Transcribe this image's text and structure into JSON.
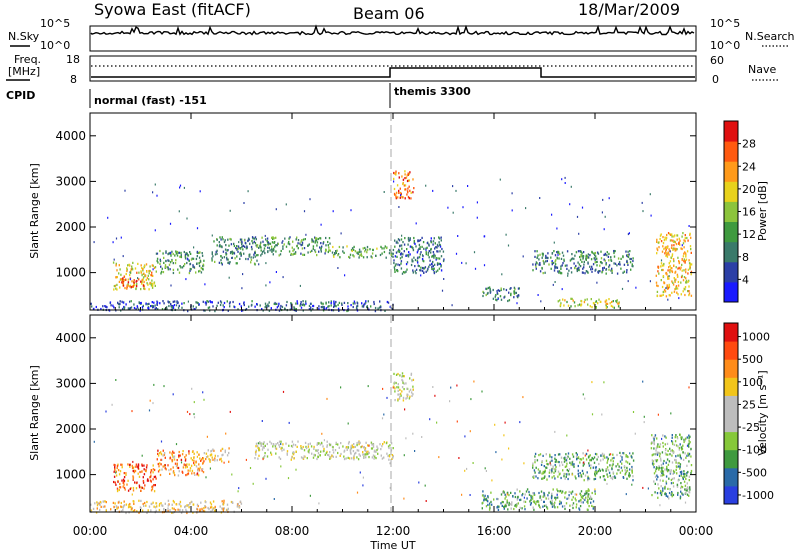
{
  "header": {
    "station": "Syowa East (fitACF)",
    "beam": "Beam 06",
    "date": "18/Mar/2009"
  },
  "top_panels": {
    "nsky_label": "N.Sky",
    "nsearch_label": "N.Search",
    "count_ticks": [
      "10^5",
      "10^0"
    ],
    "freq_label_1": "Freq.",
    "freq_label_2": "[MHz]",
    "freq_ticks": [
      "18",
      "8"
    ],
    "nave_ticks": [
      "60",
      "0"
    ],
    "nave_label": "Nave",
    "cpid_label": "CPID",
    "cpid_segments": [
      "normal (fast) -151",
      "themis 3300"
    ]
  },
  "colors": {
    "power_scale": [
      "#1a1aff",
      "#2c3fa6",
      "#3a7a6a",
      "#3f9a3f",
      "#8cc43c",
      "#e8d21c",
      "#ff9a1a",
      "#ff5a10",
      "#e01010"
    ],
    "velocity_scale": [
      "#2a3fe0",
      "#2a6aa8",
      "#3f9a3f",
      "#86c83a",
      "#bdbdbd",
      "#bdbdbd",
      "#f2c51a",
      "#ff8c1a",
      "#ff4a10",
      "#e01010"
    ],
    "ground_scatter": "#bdbdbd"
  },
  "chart_data": [
    {
      "type": "heatmap",
      "title": "Power",
      "xlabel": "",
      "ylabel": "Slant Range [km]",
      "xlim": [
        "00:00",
        "00:00"
      ],
      "ylim": [
        180,
        4500
      ],
      "y_ticks": [
        "1000",
        "2000",
        "3000",
        "4000"
      ],
      "colorbar": {
        "label": "Power [dB]",
        "ticks": [
          "4",
          "8",
          "12",
          "16",
          "20",
          "24",
          "28"
        ]
      },
      "regions": [
        {
          "t0": 0.9,
          "t1": 2.6,
          "r0": 650,
          "r1": 1250,
          "level": 0.62
        },
        {
          "t0": 1.2,
          "t1": 2.2,
          "r0": 700,
          "r1": 900,
          "level": 0.9
        },
        {
          "t0": 2.6,
          "t1": 4.5,
          "r0": 1000,
          "r1": 1500,
          "level": 0.35
        },
        {
          "t0": 4.8,
          "t1": 6.6,
          "r0": 1200,
          "r1": 1800,
          "level": 0.3
        },
        {
          "t0": 6.5,
          "t1": 9.5,
          "r0": 1400,
          "r1": 1800,
          "level": 0.35
        },
        {
          "t0": 9.5,
          "t1": 12.0,
          "r0": 1350,
          "r1": 1600,
          "level": 0.4
        },
        {
          "t0": 12.0,
          "t1": 12.8,
          "r0": 2650,
          "r1": 3250,
          "level": 0.78
        },
        {
          "t0": 12.0,
          "t1": 14.0,
          "r0": 1000,
          "r1": 1800,
          "level": 0.25
        },
        {
          "t0": 15.5,
          "t1": 17.0,
          "r0": 400,
          "r1": 700,
          "level": 0.3
        },
        {
          "t0": 17.5,
          "t1": 21.5,
          "r0": 1000,
          "r1": 1500,
          "level": 0.3
        },
        {
          "t0": 18.5,
          "t1": 21.0,
          "r0": 250,
          "r1": 450,
          "level": 0.55
        },
        {
          "t0": 22.4,
          "t1": 23.8,
          "r0": 500,
          "r1": 1900,
          "level": 0.65
        },
        {
          "t0": 0.0,
          "t1": 12.0,
          "r0": 180,
          "r1": 400,
          "level": 0.2
        }
      ]
    },
    {
      "type": "heatmap",
      "title": "Velocity",
      "xlabel": "Time UT",
      "ylabel": "Slant Range [km]",
      "xlim": [
        "00:00",
        "00:00"
      ],
      "ylim": [
        180,
        4500
      ],
      "x_ticks": [
        "00:00",
        "04:00",
        "08:00",
        "12:00",
        "16:00",
        "20:00",
        "00:00"
      ],
      "y_ticks": [
        "1000",
        "2000",
        "3000",
        "4000"
      ],
      "colorbar": {
        "label": "Velocity [m s⁻¹]",
        "ticks": [
          "1000",
          "500",
          "100",
          "25",
          "-25",
          "-100",
          "-500",
          "-1000"
        ]
      },
      "regions": [
        {
          "t0": 0.9,
          "t1": 2.6,
          "r0": 650,
          "r1": 1250,
          "level": 0.82
        },
        {
          "t0": 2.6,
          "t1": 4.5,
          "r0": 1000,
          "r1": 1550,
          "level": 0.75
        },
        {
          "t0": 4.5,
          "t1": 5.5,
          "r0": 1300,
          "r1": 1600,
          "level": 0.6
        },
        {
          "t0": 6.5,
          "t1": 12.0,
          "r0": 1350,
          "r1": 1750,
          "level": 0.48
        },
        {
          "t0": 12.0,
          "t1": 12.8,
          "r0": 2650,
          "r1": 3250,
          "level": 0.48
        },
        {
          "t0": 0.0,
          "t1": 6.0,
          "r0": 180,
          "r1": 450,
          "level": 0.62
        },
        {
          "t0": 17.5,
          "t1": 21.5,
          "r0": 900,
          "r1": 1500,
          "level": 0.3
        },
        {
          "t0": 15.5,
          "t1": 20.0,
          "r0": 250,
          "r1": 700,
          "level": 0.28
        },
        {
          "t0": 22.2,
          "t1": 23.8,
          "r0": 500,
          "r1": 1900,
          "level": 0.3
        }
      ]
    }
  ]
}
